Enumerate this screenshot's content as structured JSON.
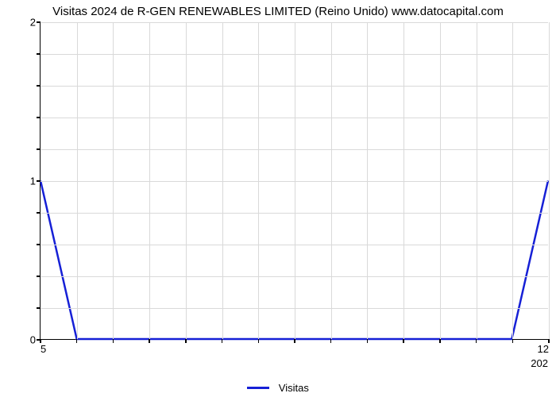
{
  "chart": {
    "type": "line",
    "title": "Visitas 2024 de R-GEN RENEWABLES LIMITED (Reino Unido) www.datocapital.com",
    "title_fontsize": 15,
    "background_color": "#ffffff",
    "grid_color": "#d9d9d9",
    "axis_color": "#000000",
    "line_color": "#1620d6",
    "line_width": 2.5,
    "x": [
      5,
      5.5,
      6,
      6.5,
      7,
      7.5,
      8,
      8.5,
      9,
      9.5,
      10,
      10.5,
      11,
      11.5,
      12
    ],
    "y": [
      1,
      0,
      0,
      0,
      0,
      0,
      0,
      0,
      0,
      0,
      0,
      0,
      0,
      0,
      1
    ],
    "xlim": [
      5,
      12
    ],
    "ylim": [
      0,
      2
    ],
    "ytick_major": [
      0,
      1,
      2
    ],
    "ytick_minor_step": 0.2,
    "xtick_labels": {
      "5": "5",
      "12": "12"
    },
    "subcaption_right": "202",
    "legend_label": "Visitas",
    "tick_fontsize": 13,
    "legend_fontsize": 13
  }
}
